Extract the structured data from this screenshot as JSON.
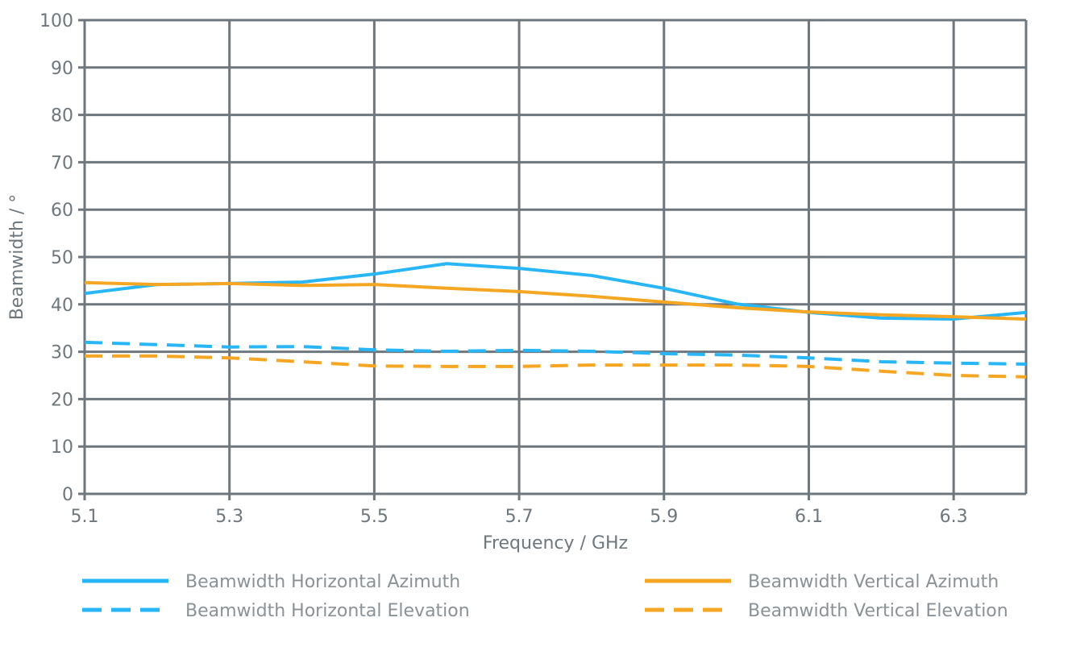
{
  "chart_data": {
    "type": "line",
    "title": "",
    "xlabel": "Frequency / GHz",
    "ylabel": "Beamwidth / °",
    "xlim": [
      5.1,
      6.4
    ],
    "ylim": [
      0,
      100
    ],
    "grid": true,
    "legend_placement": "bottom",
    "x_ticks": [
      "5.1",
      "5.3",
      "5.5",
      "5.7",
      "5.9",
      "6.1",
      "6.3"
    ],
    "y_ticks": [
      "0",
      "10",
      "20",
      "30",
      "40",
      "50",
      "60",
      "70",
      "80",
      "90",
      "100"
    ],
    "x": [
      5.1,
      5.2,
      5.3,
      5.4,
      5.5,
      5.6,
      5.7,
      5.8,
      5.9,
      6.0,
      6.1,
      6.2,
      6.3,
      6.4
    ],
    "series": [
      {
        "name": "Beamwidth Horizontal Azimuth",
        "color": "#29b6f6",
        "dash": false,
        "values": [
          42.3,
          44.2,
          44.4,
          44.7,
          46.4,
          48.6,
          47.6,
          46.1,
          43.4,
          40.1,
          38.3,
          37.1,
          36.9,
          38.3
        ]
      },
      {
        "name": "Beamwidth Horizontal Elevation",
        "color": "#29b6f6",
        "dash": true,
        "values": [
          32.0,
          31.5,
          31.0,
          31.1,
          30.4,
          30.1,
          30.3,
          30.1,
          29.6,
          29.3,
          28.7,
          27.9,
          27.6,
          27.4
        ]
      },
      {
        "name": "Beamwidth Vertical Azimuth",
        "color": "#f5a623",
        "dash": false,
        "values": [
          44.6,
          44.2,
          44.4,
          44.0,
          44.2,
          43.4,
          42.7,
          41.7,
          40.5,
          39.3,
          38.4,
          37.8,
          37.4,
          36.9
        ]
      },
      {
        "name": "Beamwidth Vertical Elevation",
        "color": "#f5a623",
        "dash": true,
        "values": [
          29.1,
          29.1,
          28.7,
          27.9,
          27.0,
          26.9,
          26.9,
          27.2,
          27.2,
          27.2,
          26.9,
          25.9,
          25.0,
          24.7
        ]
      }
    ],
    "grid_color": "#6e777d",
    "text_color": "#6e777d"
  }
}
